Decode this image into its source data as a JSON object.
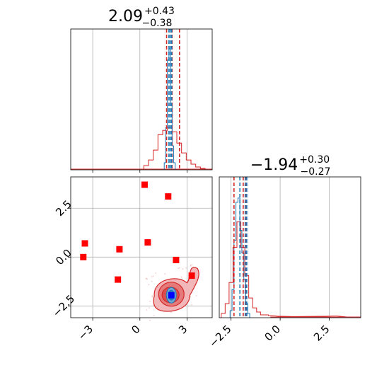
{
  "chart_data": [
    {
      "type": "histogram",
      "panel": "marginal-param-1",
      "title": {
        "base": "2.09",
        "plus": "+0.43",
        "minus": "−0.38"
      },
      "median": 2.09,
      "lower": 1.71,
      "upper": 2.52,
      "xlim": [
        -4.4,
        4.6
      ],
      "grid": true,
      "colors": {
        "red": "#d62728",
        "blue": "#1f77b4"
      },
      "red_series": {
        "name": "",
        "bins": [
          [
            0.4,
            0.03
          ],
          [
            0.7,
            0.07
          ],
          [
            1.0,
            0.14
          ],
          [
            1.3,
            0.25
          ],
          [
            1.6,
            0.28
          ],
          [
            1.9,
            0.3
          ],
          [
            2.2,
            0.27
          ],
          [
            2.5,
            0.19
          ],
          [
            2.8,
            0.12
          ],
          [
            3.1,
            0.07
          ],
          [
            3.4,
            0.04
          ],
          [
            3.7,
            0.02
          ],
          [
            4.0,
            0.01
          ]
        ],
        "bin_width": 0.3,
        "median_line": 2.05,
        "lower_line": 1.7,
        "upper_line": 2.52
      },
      "blue_series": {
        "name": "",
        "bins": [
          [
            1.6,
            0.05
          ],
          [
            1.7,
            0.3
          ],
          [
            1.8,
            0.78
          ],
          [
            1.9,
            0.86
          ],
          [
            2.0,
            0.46
          ],
          [
            2.1,
            0.17
          ],
          [
            2.2,
            0.05
          ]
        ],
        "bin_width": 0.1,
        "median_line": 1.93,
        "lower_line": 1.85,
        "upper_line": 2.02
      }
    },
    {
      "type": "histogram",
      "panel": "marginal-param-2",
      "title": {
        "base": "−1.94",
        "plus": "+0.30",
        "minus": "−0.27"
      },
      "median": -1.94,
      "lower": -2.21,
      "upper": -1.64,
      "xlim": [
        -3.1,
        4.1
      ],
      "xticks": [
        -2.5,
        0.0,
        2.5
      ],
      "xtick_labels": [
        "−2.5",
        "0.0",
        "2.5"
      ],
      "grid": true,
      "red_series": {
        "name": "",
        "bins": [
          [
            -2.9,
            0.03
          ],
          [
            -2.7,
            0.1
          ],
          [
            -2.5,
            0.25
          ],
          [
            -2.3,
            0.5
          ],
          [
            -2.1,
            0.68
          ],
          [
            -1.9,
            0.5
          ],
          [
            -1.7,
            0.3
          ],
          [
            -1.5,
            0.14
          ],
          [
            -1.3,
            0.07
          ],
          [
            -1.1,
            0.04
          ],
          [
            -0.9,
            0.02
          ],
          [
            -0.7,
            0.02
          ],
          [
            -0.5,
            0.015
          ],
          [
            0.0,
            0.01
          ],
          [
            0.7,
            0.008
          ],
          [
            2.2,
            0.01
          ],
          [
            2.8,
            0.012
          ],
          [
            3.5,
            0.005
          ]
        ],
        "bin_width": 0.2,
        "median_line": -1.88,
        "lower_line": -2.35,
        "upper_line": -1.72
      },
      "blue_series": {
        "name": "",
        "bins": [
          [
            -2.5,
            0.05
          ],
          [
            -2.4,
            0.2
          ],
          [
            -2.3,
            0.55
          ],
          [
            -2.2,
            0.82
          ],
          [
            -2.1,
            0.85
          ],
          [
            -2.0,
            0.62
          ],
          [
            -1.9,
            0.46
          ],
          [
            -1.8,
            0.27
          ],
          [
            -1.7,
            0.1
          ],
          [
            -1.6,
            0.03
          ]
        ],
        "bin_width": 0.1,
        "median_line": -1.78,
        "lower_line": -2.05,
        "upper_line": -1.7
      }
    },
    {
      "type": "scatter",
      "panel": "joint-param-1-vs-param-2",
      "xlim": [
        -4.4,
        4.6
      ],
      "ylim": [
        -3.1,
        4.1
      ],
      "xticks": [
        -3,
        0,
        3
      ],
      "xtick_labels": [
        "−3",
        "0",
        "3"
      ],
      "yticks": [
        -2.5,
        0.0,
        2.5
      ],
      "ytick_labels": [
        "−2.5",
        "0.0",
        "2.5"
      ],
      "grid": true,
      "red_squares": [
        [
          0.3,
          3.7
        ],
        [
          1.8,
          3.1
        ],
        [
          -3.5,
          0.7
        ],
        [
          -1.3,
          0.4
        ],
        [
          0.5,
          0.75
        ],
        [
          -3.6,
          0.0
        ],
        [
          2.3,
          -0.15
        ],
        [
          3.3,
          -0.95
        ],
        [
          -1.4,
          -1.15
        ]
      ],
      "blue_square": [
        2.0,
        -1.95
      ],
      "red_contour_center": [
        2.0,
        -1.9
      ],
      "blue_contour_center": [
        2.0,
        -1.95
      ]
    }
  ]
}
